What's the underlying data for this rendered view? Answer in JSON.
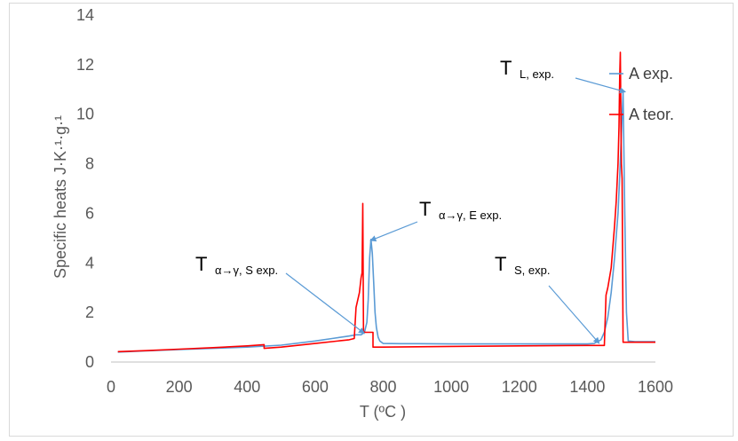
{
  "chart_data": {
    "type": "line",
    "xlabel": "T (ºC )",
    "ylabel": "Specific heats J·K·¹·g·¹",
    "xlim": [
      0,
      1600
    ],
    "ylim": [
      0,
      14
    ],
    "xticks": [
      0,
      200,
      400,
      600,
      800,
      1000,
      1200,
      1400,
      1600
    ],
    "yticks": [
      0,
      2,
      4,
      6,
      8,
      10,
      12,
      14
    ],
    "grid": false,
    "legend": "right",
    "series": [
      {
        "name": "A exp.",
        "color": "#5b9bd5",
        "x": [
          20,
          100,
          200,
          300,
          400,
          500,
          600,
          650,
          700,
          720,
          735,
          745,
          752,
          756,
          760,
          764,
          768,
          772,
          776,
          780,
          785,
          790,
          800,
          850,
          900,
          1000,
          1100,
          1200,
          1300,
          1400,
          1420,
          1440,
          1450,
          1460,
          1470,
          1480,
          1490,
          1495,
          1500,
          1505,
          1510,
          1515,
          1520,
          1540,
          1560,
          1600
        ],
        "y": [
          0.4,
          0.45,
          0.5,
          0.55,
          0.6,
          0.68,
          0.85,
          0.95,
          1.05,
          1.1,
          1.1,
          1.2,
          1.6,
          2.5,
          4.2,
          4.95,
          4.4,
          3.2,
          2.0,
          1.4,
          1.0,
          0.85,
          0.75,
          0.74,
          0.74,
          0.73,
          0.73,
          0.73,
          0.73,
          0.73,
          0.75,
          0.9,
          1.2,
          1.8,
          2.8,
          4.2,
          6.0,
          7.5,
          9.2,
          10.9,
          6.0,
          2.0,
          0.85,
          0.82,
          0.82,
          0.82
        ]
      },
      {
        "name": "A teor.",
        "color": "#ff0000",
        "x": [
          20,
          100,
          200,
          300,
          400,
          450,
          450,
          500,
          600,
          700,
          715,
          720,
          730,
          735,
          738,
          740,
          742,
          745,
          748,
          752,
          760,
          770,
          770,
          800,
          1000,
          1200,
          1400,
          1450,
          1455,
          1460,
          1470,
          1480,
          1485,
          1490,
          1493,
          1495,
          1497,
          1499,
          1500,
          1502,
          1505,
          1510,
          1600
        ],
        "y": [
          0.42,
          0.46,
          0.52,
          0.58,
          0.65,
          0.7,
          0.55,
          0.6,
          0.75,
          0.9,
          0.95,
          2.2,
          2.8,
          3.4,
          3.6,
          6.4,
          1.25,
          1.2,
          1.2,
          1.2,
          1.2,
          1.2,
          0.6,
          0.6,
          0.63,
          0.65,
          0.67,
          0.67,
          2.7,
          3.0,
          3.8,
          5.5,
          6.5,
          8.0,
          9.5,
          11.5,
          12.5,
          9.3,
          8.0,
          7.4,
          0.8,
          0.8,
          0.8
        ]
      }
    ],
    "annotations": [
      {
        "main": "T",
        "sub": "α→γ, S exp.",
        "x": 745,
        "y": 1.15
      },
      {
        "main": "T",
        "sub": "α→γ, E exp.",
        "x": 762,
        "y": 4.9
      },
      {
        "main": "T",
        "sub": "S, exp.",
        "x": 1435,
        "y": 0.75
      },
      {
        "main": "T",
        "sub": "L, exp.",
        "x": 1512,
        "y": 10.9
      }
    ]
  }
}
